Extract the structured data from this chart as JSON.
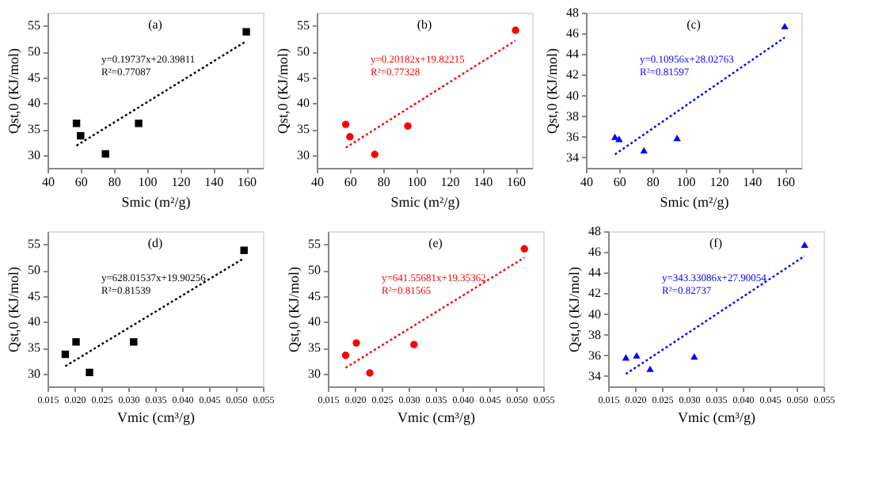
{
  "chart_data": [
    {
      "type": "scatter",
      "xlabel": "Smic (m²/g)",
      "ylabel": "Qst,0 (KJ/mol)",
      "marker": "square",
      "annotations": [
        "(a)",
        "y=0.19737x+20.39811",
        "R²=0.77087"
      ],
      "xlim": [
        40,
        170
      ],
      "xticks": [
        40,
        60,
        80,
        100,
        120,
        140,
        160
      ],
      "ylim": [
        27.5,
        57.5
      ],
      "yticks": [
        30,
        35,
        40,
        45,
        50,
        55
      ],
      "series": [
        {
          "color": "#000000",
          "x": [
            57.5,
            60,
            75,
            95,
            160
          ],
          "values": [
            36.1,
            33.7,
            30.2,
            36.1,
            53.8
          ]
        },
        {
          "type": "line",
          "marker": "none",
          "line_style": "dotted",
          "color": "#000000",
          "x": [
            57.5,
            160
          ],
          "values": [
            31.8,
            52.0
          ]
        }
      ]
    },
    {
      "type": "scatter",
      "xlabel": "Smic (m²/g)",
      "ylabel": "Qst,0 (KJ/mol)",
      "marker": "circle",
      "annotations": [
        "(b)",
        "y=0.20182x+19.82215",
        "R²=0.77328"
      ],
      "xlim": [
        40,
        170
      ],
      "xticks": [
        40,
        60,
        80,
        100,
        120,
        140,
        160
      ],
      "ylim": [
        27.5,
        57.5
      ],
      "yticks": [
        30,
        35,
        40,
        45,
        50,
        55
      ],
      "series": [
        {
          "color": "#ff0000",
          "x": [
            57.5,
            60,
            75,
            95,
            160
          ],
          "values": [
            35.9,
            33.5,
            30.1,
            35.6,
            54.1
          ]
        },
        {
          "type": "line",
          "marker": "none",
          "line_style": "dotted",
          "color": "#ff0000",
          "x": [
            57.5,
            160
          ],
          "values": [
            31.4,
            52.1
          ]
        }
      ]
    },
    {
      "type": "scatter",
      "xlabel": "Smic (m²/g)",
      "ylabel": "Qst,0 (KJ/mol)",
      "marker": "triangle",
      "annotations": [
        "(c)",
        "y=0.10956x+28.02763",
        "R²=0.81597"
      ],
      "xlim": [
        40,
        170
      ],
      "xticks": [
        40,
        60,
        80,
        100,
        120,
        140,
        160
      ],
      "ylim": [
        33,
        48
      ],
      "yticks": [
        34,
        36,
        38,
        40,
        42,
        44,
        46,
        48
      ],
      "series": [
        {
          "color": "#0000ff",
          "x": [
            57.5,
            60,
            75,
            95,
            160
          ],
          "values": [
            36.0,
            35.8,
            34.7,
            35.9,
            46.7
          ]
        },
        {
          "type": "line",
          "marker": "none",
          "line_style": "dotted",
          "color": "#0000ff",
          "x": [
            57.5,
            160
          ],
          "values": [
            34.3,
            45.6
          ]
        }
      ]
    },
    {
      "type": "scatter",
      "xlabel": "Vmic (cm³/g)",
      "ylabel": "Qst,0 (KJ/mol)",
      "marker": "square",
      "annotations": [
        "(d)",
        "y=628.01537x+19.90256",
        "R²=0.81539"
      ],
      "xlim": [
        0.015,
        0.055
      ],
      "xticks": [
        {
          "value": 0.015,
          "label": "0.015"
        },
        {
          "value": 0.02,
          "label": "0.020"
        },
        {
          "value": 0.025,
          "label": "0.025"
        },
        {
          "value": 0.03,
          "label": "0.030"
        },
        {
          "value": 0.035,
          "label": "0.035"
        },
        {
          "value": 0.04,
          "label": "0.040"
        },
        {
          "value": 0.045,
          "label": "0.045"
        },
        {
          "value": 0.05,
          "label": "0.050"
        },
        {
          "value": 0.055,
          "label": "0.055"
        }
      ],
      "ylim": [
        27.5,
        57.5
      ],
      "yticks": [
        30,
        35,
        40,
        45,
        50,
        55
      ],
      "series": [
        {
          "color": "#000000",
          "x": [
            0.0183,
            0.0203,
            0.0228,
            0.031,
            0.0515
          ],
          "values": [
            33.7,
            36.1,
            30.2,
            36.1,
            53.8
          ]
        },
        {
          "type": "line",
          "marker": "none",
          "line_style": "dotted",
          "color": "#000000",
          "x": [
            0.0183,
            0.0515
          ],
          "values": [
            31.4,
            52.3
          ]
        }
      ]
    },
    {
      "type": "scatter",
      "xlabel": "Vmic (cm³/g)",
      "ylabel": "Qst,0 (KJ/mol)",
      "marker": "circle",
      "annotations": [
        "(e)",
        "y=641.55681x+19.35362",
        "R²=0.81565"
      ],
      "xlim": [
        0.015,
        0.055
      ],
      "xticks": [
        {
          "value": 0.015,
          "label": "0.015"
        },
        {
          "value": 0.02,
          "label": "0.020"
        },
        {
          "value": 0.025,
          "label": "0.025"
        },
        {
          "value": 0.03,
          "label": "0.030"
        },
        {
          "value": 0.035,
          "label": "0.035"
        },
        {
          "value": 0.04,
          "label": "0.040"
        },
        {
          "value": 0.045,
          "label": "0.045"
        },
        {
          "value": 0.05,
          "label": "0.050"
        },
        {
          "value": 0.055,
          "label": "0.055"
        }
      ],
      "ylim": [
        27.5,
        57.5
      ],
      "yticks": [
        30,
        35,
        40,
        45,
        50,
        55
      ],
      "series": [
        {
          "color": "#ff0000",
          "x": [
            0.0183,
            0.0203,
            0.0228,
            0.031,
            0.0515
          ],
          "values": [
            33.5,
            35.9,
            30.1,
            35.6,
            54.1
          ]
        },
        {
          "type": "line",
          "marker": "none",
          "line_style": "dotted",
          "color": "#ff0000",
          "x": [
            0.0183,
            0.0515
          ],
          "values": [
            31.1,
            52.4
          ]
        }
      ]
    },
    {
      "type": "scatter",
      "xlabel": "Vmic (cm³/g)",
      "ylabel": "Qst,0 (KJ/mol)",
      "marker": "triangle",
      "annotations": [
        "(f)",
        "y=343.33086x+27.90054",
        "R²=0.82737"
      ],
      "xlim": [
        0.015,
        0.055
      ],
      "xticks": [
        {
          "value": 0.015,
          "label": "0.015"
        },
        {
          "value": 0.02,
          "label": "0.020"
        },
        {
          "value": 0.025,
          "label": "0.025"
        },
        {
          "value": 0.03,
          "label": "0.030"
        },
        {
          "value": 0.035,
          "label": "0.035"
        },
        {
          "value": 0.04,
          "label": "0.040"
        },
        {
          "value": 0.045,
          "label": "0.045"
        },
        {
          "value": 0.05,
          "label": "0.050"
        },
        {
          "value": 0.055,
          "label": "0.055"
        }
      ],
      "ylim": [
        33,
        48
      ],
      "yticks": [
        34,
        36,
        38,
        40,
        42,
        44,
        46,
        48
      ],
      "series": [
        {
          "color": "#0000ff",
          "x": [
            0.0183,
            0.0203,
            0.0228,
            0.031,
            0.0515
          ],
          "values": [
            35.8,
            36.0,
            34.7,
            35.9,
            46.7
          ]
        },
        {
          "type": "line",
          "marker": "none",
          "line_style": "dotted",
          "color": "#0000ff",
          "x": [
            0.0183,
            0.0515
          ],
          "values": [
            34.2,
            45.6
          ]
        }
      ]
    }
  ]
}
